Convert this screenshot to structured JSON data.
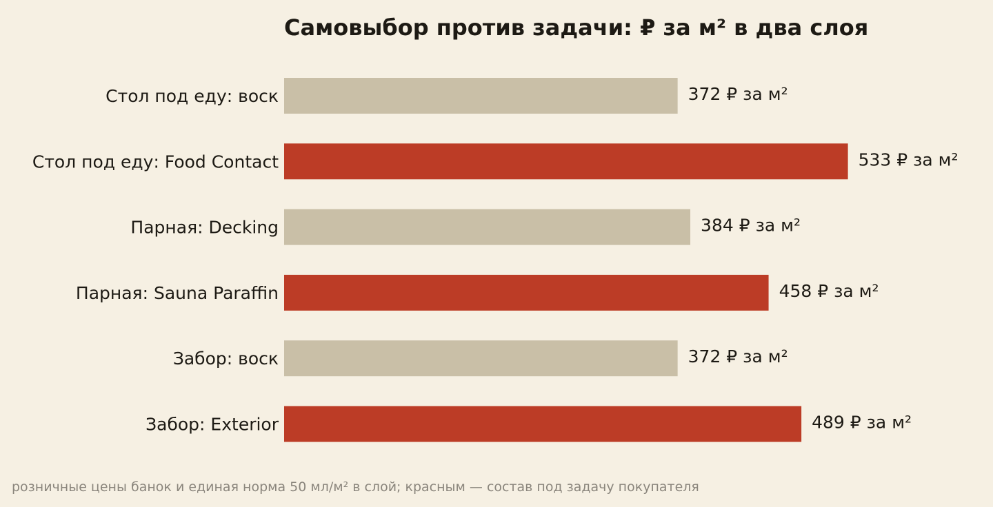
{
  "colors": {
    "background": "#f6f0e3",
    "self_choice": "#c9bfa7",
    "task_choice": "#bc3c26",
    "text": "#1d1a14",
    "footnote": "#8a857c"
  },
  "chart_data": {
    "type": "bar",
    "orientation": "horizontal",
    "title": "Самовыбор против задачи: ₽ за м² в два слоя",
    "categories": [
      "Стол под еду: воск",
      "Стол под еду: Food Contact",
      "Парная: Decking",
      "Парная: Sauna Paraffin",
      "Забор: воск",
      "Забор: Exterior"
    ],
    "values": [
      372,
      533,
      384,
      458,
      372,
      489
    ],
    "value_labels": [
      "372 ₽ за м²",
      "533 ₽ за м²",
      "384 ₽ за м²",
      "458 ₽ за м²",
      "372 ₽ за м²",
      "489 ₽ за м²"
    ],
    "highlight": [
      false,
      true,
      false,
      true,
      false,
      true
    ],
    "xlim": [
      0,
      575
    ],
    "grid": false,
    "legend": "none",
    "footnote": "розничные цены банок и единая норма 50 мл/м² в слой; красным — состав под задачу покупателя"
  }
}
